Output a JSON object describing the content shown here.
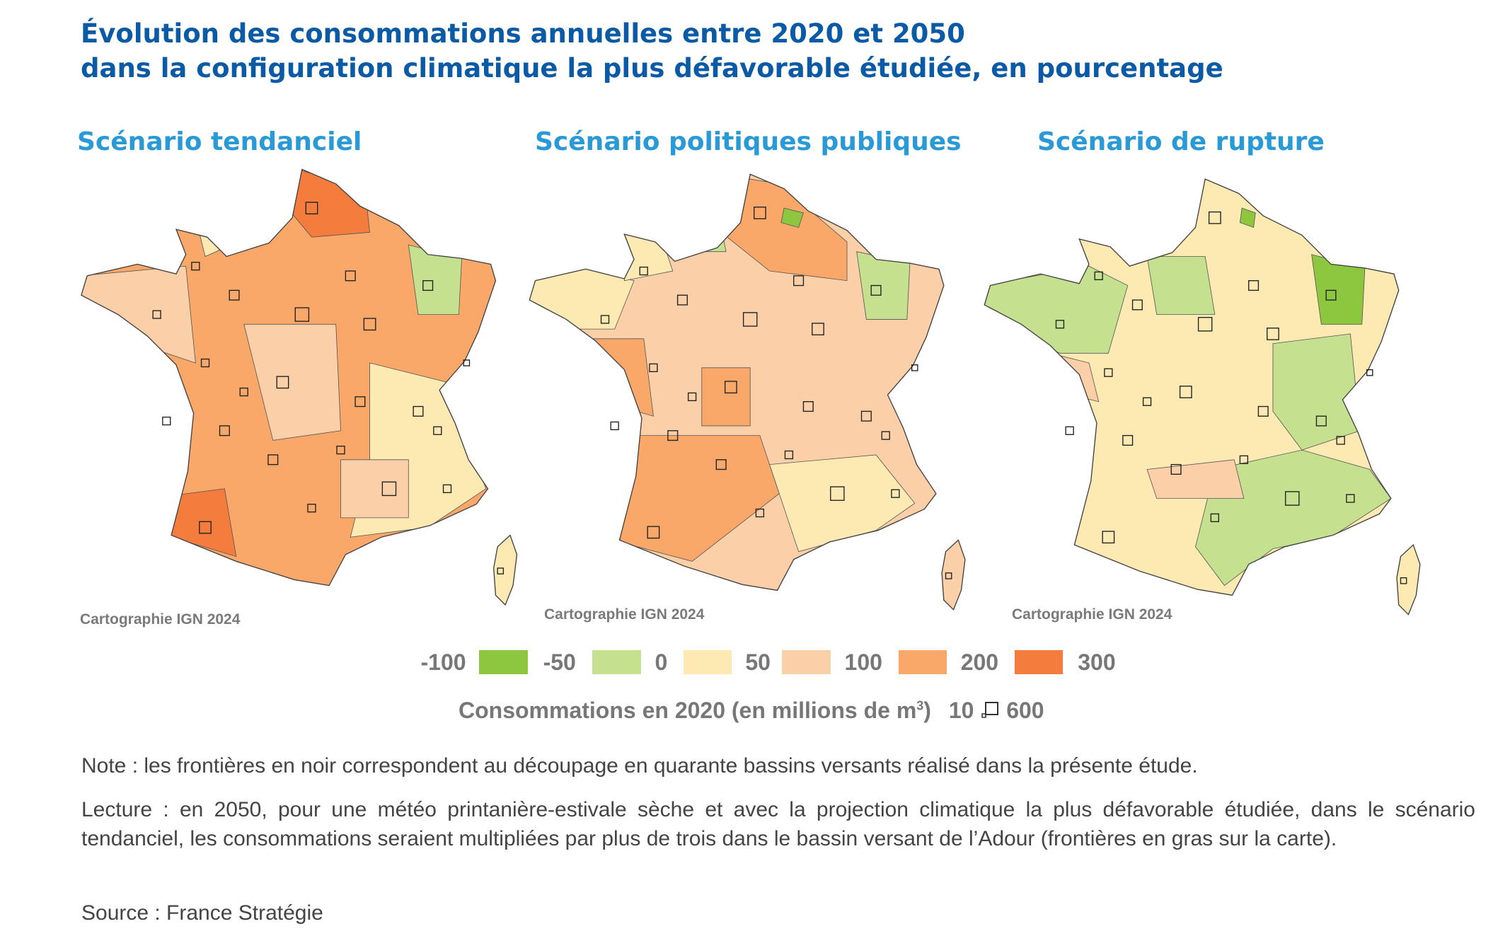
{
  "title": {
    "lines": [
      "Évolution des consommations annuelles entre 2020 et 2050",
      "dans la configuration climatique la plus défavorable étudiée, en pourcentage"
    ]
  },
  "maps": [
    {
      "title": "Scénario tendanciel",
      "credit": "Cartographie IGN 2024"
    },
    {
      "title": "Scénario politiques publiques",
      "credit": "Cartographie IGN 2024"
    },
    {
      "title": "Scénario de rupture",
      "credit": "Cartographie IGN 2024"
    }
  ],
  "legend": {
    "labels": [
      "-100",
      "-50",
      "0",
      "50",
      "100",
      "200",
      "300"
    ],
    "colors": [
      "#8dc63f",
      "#c5e08e",
      "#fdeab2",
      "#fbd0a8",
      "#f9a86a",
      "#f47c3c"
    ]
  },
  "size_legend": {
    "label": "Consommations en 2020 (en millions de m",
    "sup": "3",
    "close": ")",
    "min": "10",
    "max": "600"
  },
  "notes": [
    "Note : les frontières en noir correspondent au découpage en quarante bassins versants réalisé dans la présente étude.",
    "Lecture : en 2050, pour une météo printanière-estivale sèche et avec la projection climatique la plus défavorable étudiée, dans le scénario tendanciel, les consommations seraient multipliées par plus de trois dans le bassin versant de l’Adour (frontières en gras sur la carte).",
    "Source : France Stratégie"
  ]
}
